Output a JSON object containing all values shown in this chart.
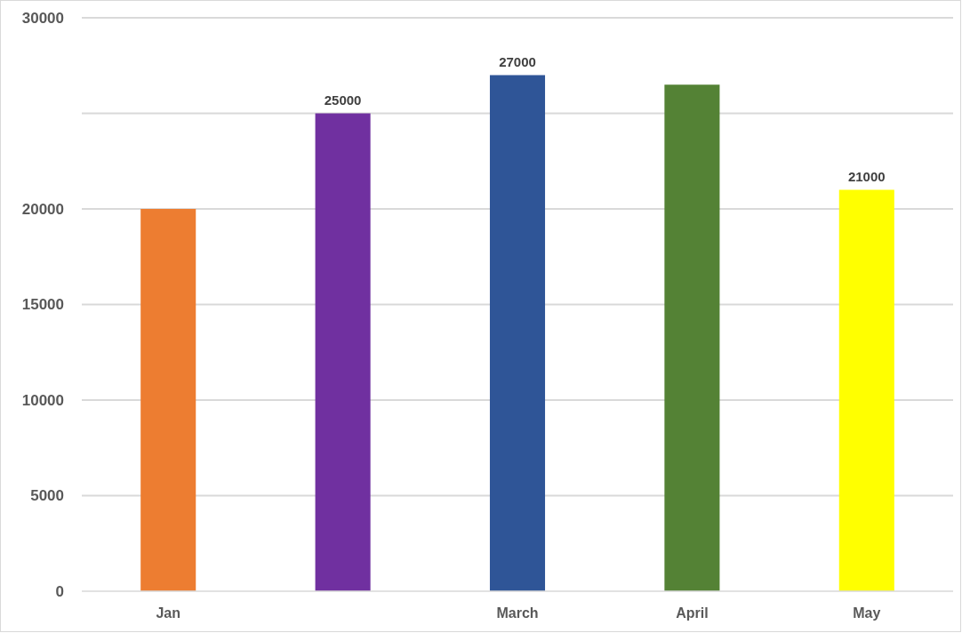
{
  "chart_data": {
    "type": "bar",
    "categories": [
      "Jan",
      null,
      "March",
      "April",
      "May"
    ],
    "values": [
      20000,
      25000,
      27000,
      26500,
      21000
    ],
    "colors": [
      "#ed7d31",
      "#7030a0",
      "#2f5597",
      "#548235",
      "#ffff00"
    ],
    "value_labels": [
      null,
      "25000",
      "27000",
      null,
      "21000"
    ],
    "ylim": [
      0,
      30000
    ],
    "yticks": [
      0,
      5000,
      10000,
      15000,
      20000,
      {
        "value": 25000,
        "label": null
      },
      30000
    ],
    "grid": "y"
  }
}
